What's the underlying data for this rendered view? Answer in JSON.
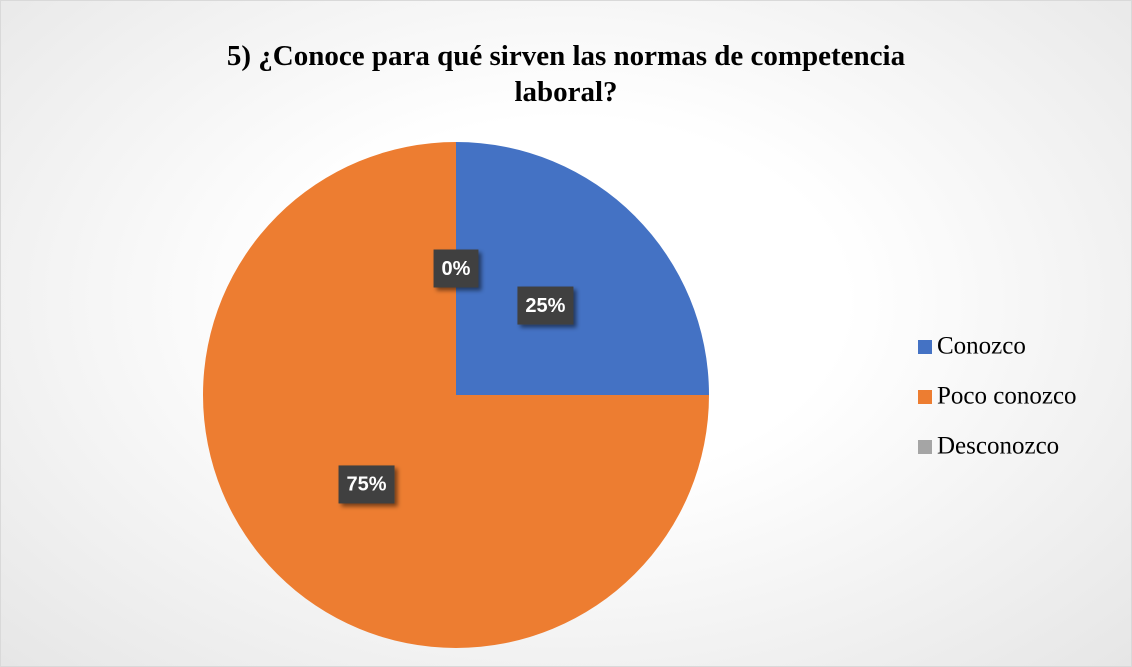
{
  "chart_data": {
    "type": "pie",
    "title": "5) ¿Conoce para qué sirven las normas de competencia laboral?",
    "categories": [
      "Conozco",
      "Poco conozco",
      "Desconozco"
    ],
    "values": [
      25,
      75,
      0
    ],
    "value_labels": [
      "25%",
      "75%",
      "0%"
    ],
    "colors": [
      "#4472c4",
      "#ed7d31",
      "#a5a5a5"
    ],
    "legend": "right"
  }
}
